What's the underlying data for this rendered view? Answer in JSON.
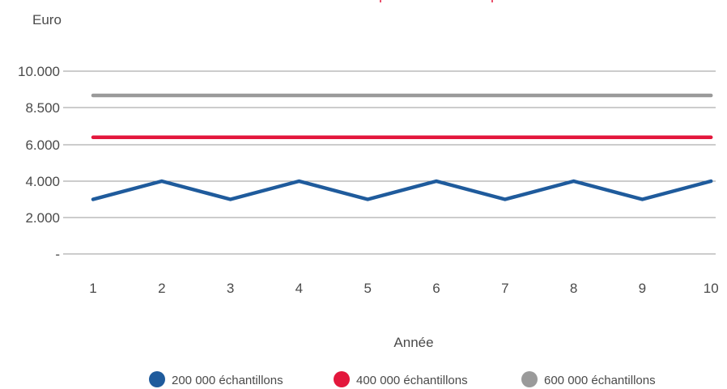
{
  "chart_data": {
    "type": "line",
    "ylabel": "Euro",
    "xlabel": "Année",
    "categories": [
      "1",
      "2",
      "3",
      "4",
      "5",
      "6",
      "7",
      "8",
      "9",
      "10"
    ],
    "y_ticks": [
      {
        "value": 0,
        "label": "-"
      },
      {
        "value": 2000,
        "label": "2.000"
      },
      {
        "value": 4000,
        "label": "4.000"
      },
      {
        "value": 6000,
        "label": "6.000"
      },
      {
        "value": 8500,
        "label": "8.500"
      },
      {
        "value": 10000,
        "label": "10.000"
      }
    ],
    "series": [
      {
        "name": "200 000 échantillons",
        "color": "#1f5b9c",
        "values": [
          3000,
          4000,
          3000,
          4000,
          3000,
          4000,
          3000,
          4000,
          3000,
          4000
        ]
      },
      {
        "name": "400 000 échantillons",
        "color": "#e3173c",
        "values": [
          6500,
          6500,
          6500,
          6500,
          6500,
          6500,
          6500,
          6500,
          6500,
          6500
        ]
      },
      {
        "name": "600 000 échantillons",
        "color": "#9a9a9a",
        "values": [
          9000,
          9000,
          9000,
          9000,
          9000,
          9000,
          9000,
          9000,
          9000,
          9000
        ]
      }
    ],
    "grid": true,
    "legend": "bottom"
  }
}
